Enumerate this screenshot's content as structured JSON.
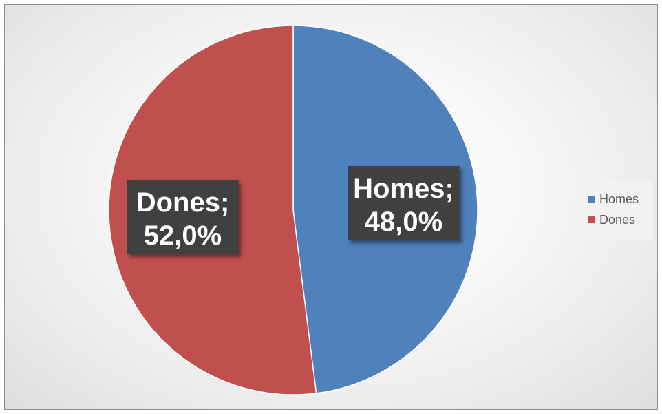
{
  "chart_data": {
    "type": "pie",
    "title": "",
    "categories": [
      "Homes",
      "Dones"
    ],
    "values": [
      48.0,
      52.0
    ],
    "data_labels": [
      "Homes;\n48,0%",
      "Dones;\n52,0%"
    ],
    "colors": [
      "#4f81bd",
      "#c0504d"
    ],
    "legend_position": "right",
    "start_angle_deg": 0,
    "direction": "clockwise"
  },
  "legend": {
    "items": [
      {
        "label": "Homes",
        "color": "#4f81bd"
      },
      {
        "label": "Dones",
        "color": "#c0504d"
      }
    ]
  }
}
